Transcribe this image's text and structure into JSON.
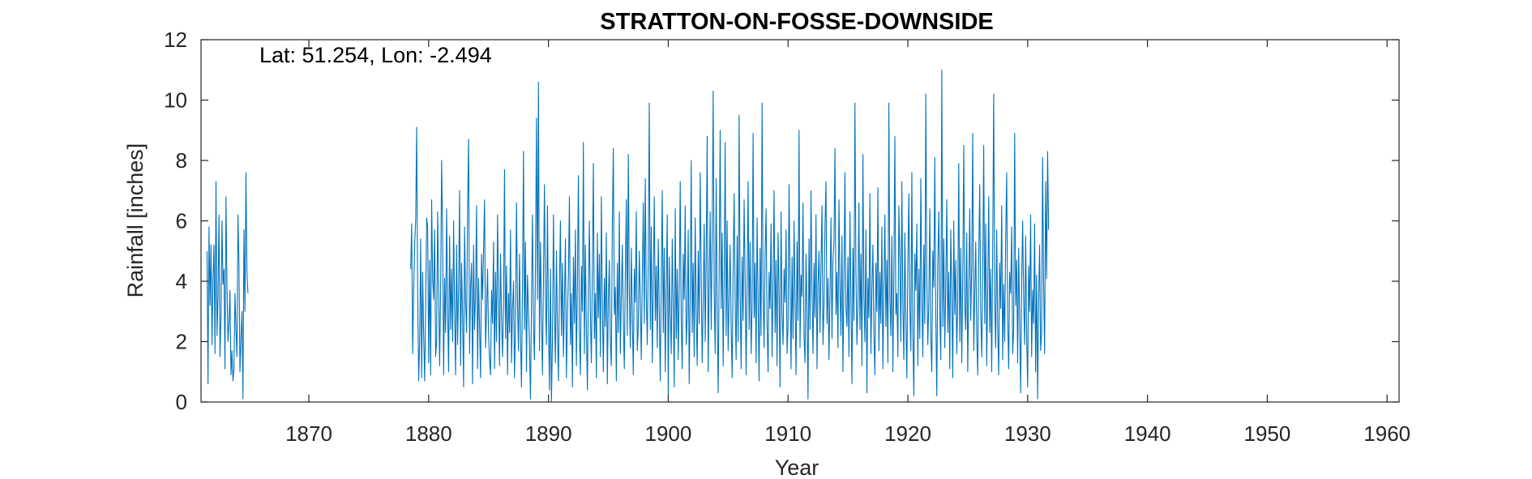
{
  "chart_data": {
    "type": "line",
    "title": "STRATTON-ON-FOSSE-DOWNSIDE",
    "xlabel": "Year",
    "ylabel": "Rainfall [inches]",
    "annotation": "Lat: 51.254, Lon: -2.494",
    "xlim": [
      1861,
      1961
    ],
    "ylim": [
      0,
      12
    ],
    "xticks": [
      1870,
      1880,
      1890,
      1900,
      1910,
      1920,
      1930,
      1940,
      1950,
      1960
    ],
    "yticks": [
      0,
      2,
      4,
      6,
      8,
      10,
      12
    ],
    "grid": false,
    "line_color": "#0072BD",
    "series": [
      {
        "name": "",
        "segments": [
          {
            "x_start": 1861.5,
            "x_step": 0.08333,
            "values": [
              5.0,
              0.6,
              5.8,
              3.2,
              5.2,
              1.9,
              4.1,
              5.2,
              1.6,
              7.3,
              2.2,
              3.5,
              6.2,
              1.5,
              2.8,
              6.0,
              3.9,
              4.4,
              1.1,
              6.8,
              3.8,
              2.0,
              2.6,
              3.7,
              0.9,
              1.7,
              0.7,
              1.1,
              3.6,
              2.4,
              1.5,
              6.2,
              4.6,
              1.0,
              2.1,
              3.0,
              0.1,
              5.7,
              3.0,
              7.6,
              4.3,
              3.6
            ]
          },
          {
            "x_start": 1878.5,
            "x_step": 0.08333,
            "values": [
              4.4,
              5.9,
              1.6,
              3.7,
              5.2,
              6.0,
              9.1,
              3.6,
              0.7,
              2.0,
              5.4,
              0.8,
              4.3,
              2.2,
              0.7,
              3.1,
              6.1,
              5.8,
              1.3,
              4.7,
              0.9,
              6.7,
              4.1,
              3.4,
              5.7,
              1.5,
              2.0,
              6.3,
              3.8,
              1.2,
              3.7,
              8.0,
              5.5,
              0.9,
              4.1,
              2.3,
              6.4,
              3.1,
              1.0,
              5.5,
              2.4,
              4.4,
              2.0,
              6.0,
              3.0,
              0.9,
              5.2,
              1.9,
              3.8,
              7.0,
              1.2,
              4.6,
              2.9,
              0.5,
              5.8,
              3.3,
              2.3,
              6.4,
              8.7,
              1.6,
              3.8,
              4.6,
              0.6,
              5.2,
              2.4,
              3.6,
              6.5,
              1.1,
              4.1,
              2.5,
              0.8,
              4.9,
              3.4,
              5.0,
              6.7,
              1.8,
              3.0,
              4.4,
              2.2,
              1.4,
              0.9,
              3.7,
              2.6,
              5.3,
              1.1,
              4.3,
              2.0,
              6.2,
              3.5,
              1.2,
              4.9,
              2.8,
              1.5,
              3.2,
              7.7,
              2.1,
              4.5,
              0.9,
              3.6,
              2.3,
              5.7,
              1.3,
              3.1,
              4.0,
              0.8,
              2.6,
              6.6,
              3.3,
              1.7,
              4.9,
              2.2,
              0.5,
              3.8,
              8.3,
              2.4,
              5.3,
              1.0,
              4.2,
              3.0,
              1.9,
              0.1,
              3.3,
              6.2,
              2.5,
              1.4,
              4.5,
              9.4,
              3.4,
              10.6,
              1.7,
              5.3,
              2.9,
              0.9,
              4.1,
              7.2,
              3.5,
              1.9,
              6.5,
              2.7,
              0.4,
              4.4,
              0.0,
              2.0,
              6.2,
              3.1,
              1.3,
              5.0,
              2.4,
              0.7,
              3.8,
              6.0,
              2.2,
              4.6,
              1.5,
              3.3,
              5.4,
              0.8,
              2.8,
              4.2,
              6.8,
              1.9,
              3.6,
              0.5,
              4.8,
              2.6,
              5.7,
              1.2,
              3.9,
              7.5,
              2.3,
              0.9,
              4.5,
              3.0,
              8.6,
              1.6,
              5.2,
              2.4,
              0.4,
              3.7,
              6.0,
              2.9,
              1.3,
              4.3,
              7.9,
              2.1,
              3.6,
              0.8,
              5.6,
              2.8,
              4.9,
              1.5,
              6.8,
              3.2,
              1.0,
              4.1,
              2.5,
              5.6,
              0.6,
              3.4,
              4.7,
              2.0,
              1.2,
              5.9,
              8.4,
              2.9,
              3.8,
              0.7,
              4.6,
              2.3,
              6.3,
              1.6,
              3.5,
              5.2,
              2.7,
              1.1,
              4.3,
              6.7,
              2.2,
              8.2,
              3.7,
              1.8,
              5.1,
              2.8,
              0.9,
              4.4,
              3.3,
              6.3,
              1.7,
              2.5,
              5.0,
              3.4,
              1.4,
              4.1,
              6.6,
              2.6,
              7.4,
              3.6,
              1.9,
              4.8,
              9.9,
              2.4,
              5.8,
              1.3,
              3.9,
              6.8,
              2.7,
              4.5,
              1.8,
              5.4,
              3.1,
              0.7,
              4.0,
              7.0,
              2.3,
              5.1,
              1.0,
              3.7,
              6.2,
              0.2,
              4.8,
              2.9,
              1.6,
              5.4,
              3.2,
              0.5,
              6.4,
              2.1,
              4.4,
              1.4,
              3.8,
              7.3,
              2.7,
              1.1,
              4.9,
              3.4,
              6.5,
              1.9,
              2.8,
              5.7,
              0.6,
              3.6,
              8.0,
              2.3,
              4.6,
              1.5,
              6.1,
              3.0,
              1.2,
              5.0,
              2.6,
              7.6,
              4.2,
              1.3,
              3.3,
              5.9,
              2.0,
              4.7,
              8.8,
              1.0,
              3.9,
              6.3,
              2.4,
              5.5,
              10.3,
              3.7,
              1.6,
              7.4,
              2.9,
              0.3,
              4.3,
              9.0,
              3.1,
              5.6,
              1.2,
              4.0,
              8.6,
              2.2,
              6.0,
              1.7,
              3.5,
              5.2,
              2.5,
              0.8,
              4.4,
              6.9,
              3.3,
              1.4,
              5.5,
              2.0,
              9.5,
              3.6,
              1.1,
              4.8,
              2.7,
              6.7,
              4.1,
              0.9,
              3.9,
              7.3,
              2.4,
              5.3,
              1.6,
              3.2,
              8.9,
              2.8,
              4.6,
              1.3,
              6.1,
              3.4,
              0.7,
              5.1,
              2.2,
              9.9,
              3.7,
              1.8,
              4.9,
              6.4,
              2.6,
              1.0,
              4.3,
              3.1,
              5.9,
              1.5,
              3.8,
              7.0,
              2.3,
              4.7,
              1.2,
              5.6,
              3.6,
              0.5,
              6.3,
              2.9,
              1.9,
              4.4,
              3.3,
              5.7,
              1.6,
              2.5,
              7.2,
              3.9,
              1.1,
              4.8,
              2.1,
              6.0,
              3.4,
              0.9,
              5.3,
              2.7,
              9.0,
              1.8,
              4.2,
              3.5,
              6.6,
              2.2,
              1.3,
              4.9,
              3.0,
              0.1,
              5.4,
              2.4,
              7.0,
              3.7,
              1.6,
              4.6,
              2.8,
              6.2,
              1.1,
              3.9,
              5.0,
              2.3,
              4.5,
              6.5,
              1.9,
              3.2,
              5.8,
              7.3,
              2.6,
              4.1,
              1.4,
              3.6,
              6.1,
              2.1,
              4.7,
              5.3,
              8.4,
              2.9,
              4.3,
              1.8,
              6.7,
              3.8,
              2.2,
              5.5,
              1.0,
              4.0,
              7.6,
              3.1,
              2.5,
              4.8,
              1.5,
              6.3,
              3.4,
              0.6,
              5.1,
              2.7,
              9.9,
              4.4,
              1.9,
              3.3,
              6.6,
              2.4,
              4.9,
              1.2,
              8.2,
              3.5,
              2.0,
              5.7,
              0.3,
              4.1,
              2.8,
              6.9,
              1.6,
              3.7,
              5.2,
              2.3,
              0.9,
              4.6,
              3.0,
              7.1,
              1.7,
              4.3,
              2.6,
              5.8,
              1.1,
              3.8,
              6.2,
              2.5,
              4.7,
              1.3,
              9.9,
              3.4,
              2.2,
              5.5,
              1.0,
              4.2,
              8.8,
              2.9,
              3.6,
              1.5,
              6.5,
              4.8,
              2.0,
              7.3,
              3.2,
              1.4,
              5.6,
              2.7,
              0.8,
              4.5,
              6.9,
              3.1,
              1.7,
              7.6,
              2.3,
              0.2,
              4.9,
              3.7,
              5.9,
              1.2,
              4.4,
              2.1,
              7.4,
              3.5,
              1.5,
              5.2,
              2.6,
              10.2,
              4.0,
              1.9,
              3.3,
              6.4,
              2.2,
              1.0,
              5.0,
              3.8,
              8.1,
              2.8,
              0.2,
              4.6,
              6.3,
              3.0,
              1.4,
              11.0,
              2.5,
              5.4,
              1.8,
              3.9,
              6.7,
              2.3,
              4.3,
              1.1,
              5.7,
              3.6,
              0.8,
              6.0,
              2.9,
              4.7,
              1.6,
              3.4,
              7.9,
              2.0,
              5.1,
              1.3,
              4.1,
              8.5,
              3.2,
              2.4,
              5.6,
              1.0,
              3.8,
              6.4,
              2.7,
              4.5,
              8.9,
              1.7,
              3.5,
              5.3,
              2.2,
              0.9,
              4.8,
              7.2,
              3.0,
              1.5,
              4.2,
              8.5,
              2.6,
              5.9,
              1.2,
              3.7,
              6.8,
              2.3,
              4.4,
              1.0,
              5.0,
              10.2,
              3.3,
              1.8,
              5.7,
              2.5,
              0.9,
              4.6,
              3.1,
              6.5,
              1.4,
              3.9,
              2.0,
              5.4,
              7.6,
              2.8,
              1.1,
              4.3,
              3.6,
              5.8,
              1.6,
              2.4,
              8.9,
              3.2,
              4.7,
              1.3,
              5.1,
              2.7,
              0.3,
              4.0,
              6.0,
              3.4,
              1.9,
              5.5,
              2.2,
              0.5,
              4.5,
              3.0,
              6.2,
              1.5,
              3.7,
              2.6,
              5.9,
              1.0,
              4.2,
              0.1,
              3.4,
              5.2,
              1.7,
              2.3,
              8.1,
              3.9,
              1.6,
              7.3,
              4.1,
              8.3,
              5.7
            ]
          }
        ]
      }
    ]
  }
}
